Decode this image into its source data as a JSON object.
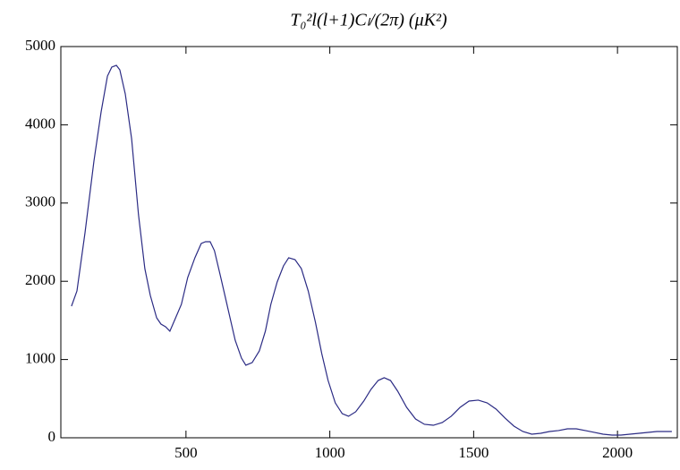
{
  "chart_data": {
    "type": "line",
    "title": "T₀²l(l+1)Cₗ/(2π)  (μK²)",
    "x": [
      102,
      121,
      149,
      180,
      205,
      227,
      242,
      258,
      270,
      289,
      311,
      335,
      357,
      376,
      398,
      413,
      429,
      444,
      460,
      484,
      506,
      531,
      553,
      568,
      584,
      599,
      621,
      646,
      671,
      693,
      708,
      730,
      755,
      776,
      795,
      817,
      839,
      857,
      879,
      901,
      925,
      950,
      972,
      994,
      1019,
      1043,
      1065,
      1090,
      1118,
      1143,
      1168,
      1189,
      1211,
      1236,
      1267,
      1298,
      1329,
      1360,
      1391,
      1422,
      1453,
      1484,
      1516,
      1547,
      1578,
      1609,
      1640,
      1671,
      1702,
      1733,
      1764,
      1795,
      1826,
      1857,
      1888,
      1919,
      1950,
      1981,
      2012,
      2043,
      2075,
      2106,
      2137,
      2168,
      2189
    ],
    "series": [
      {
        "color": "#2b2b84",
        "values": [
          1682,
          1876,
          2620,
          3535,
          4165,
          4622,
          4737,
          4760,
          4702,
          4394,
          3822,
          2849,
          2162,
          1819,
          1533,
          1453,
          1419,
          1362,
          1499,
          1705,
          2048,
          2300,
          2483,
          2506,
          2506,
          2391,
          2048,
          1648,
          1247,
          1018,
          927,
          961,
          1110,
          1362,
          1705,
          1991,
          2197,
          2300,
          2277,
          2162,
          1876,
          1476,
          1076,
          732,
          446,
          309,
          275,
          332,
          469,
          618,
          732,
          767,
          732,
          595,
          389,
          240,
          172,
          160,
          195,
          275,
          389,
          469,
          481,
          446,
          366,
          252,
          149,
          80,
          46,
          57,
          80,
          92,
          114,
          114,
          92,
          69,
          46,
          34,
          34,
          46,
          57,
          69,
          80,
          80,
          80
        ]
      }
    ],
    "xlim": [
      65,
      2208
    ],
    "xticks": [
      500,
      1000,
      1500,
      2000
    ],
    "ylim": [
      0,
      5000
    ],
    "yticks": [
      0,
      1000,
      2000,
      3000,
      4000,
      5000
    ]
  }
}
